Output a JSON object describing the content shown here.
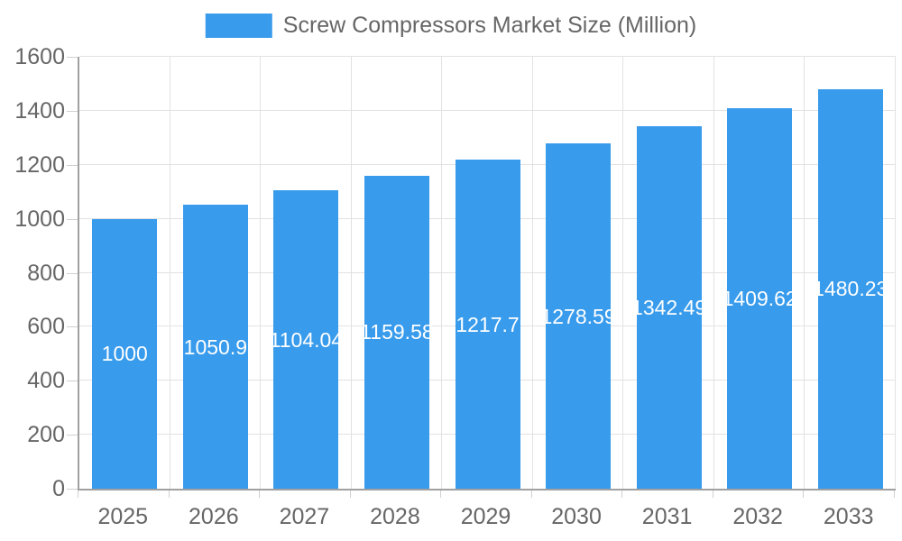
{
  "legend": {
    "label": "Screw Compressors Market Size (Million)"
  },
  "colors": {
    "bar": "#389BEC",
    "grid": "#E2E2E2",
    "axis": "#A0A0A0",
    "tick": "#D0D0D0",
    "tick_label": "#666666",
    "value_label": "#FFFFFF",
    "legend_label": "#666666",
    "background": "#FFFFFF"
  },
  "chart_data": {
    "type": "bar",
    "title": "",
    "legend_entries": [
      "Screw Compressors Market Size (Million)"
    ],
    "legend_position": "top",
    "categories": [
      "2025",
      "2026",
      "2027",
      "2028",
      "2029",
      "2030",
      "2031",
      "2032",
      "2033"
    ],
    "values": [
      1000,
      1050.9,
      1104.04,
      1159.58,
      1217.7,
      1278.59,
      1342.49,
      1409.62,
      1480.23
    ],
    "value_labels": [
      "1000",
      "1050.9",
      "1104.04",
      "1159.58",
      "1217.7",
      "1278.59",
      "1342.49",
      "1409.62",
      "1480.23"
    ],
    "value_label_position": "center-of-bar",
    "xlabel": "",
    "ylabel": "",
    "ylim": [
      0,
      1600
    ],
    "yticks": [
      0,
      200,
      400,
      600,
      800,
      1000,
      1200,
      1400,
      1600
    ],
    "grid": true
  }
}
